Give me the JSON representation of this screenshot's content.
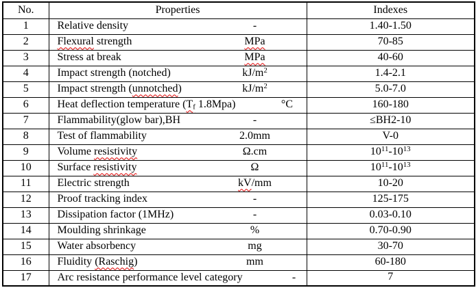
{
  "colors": {
    "border": "#000000",
    "text": "#000000",
    "squiggle": "#e00000",
    "background": "#ffffff"
  },
  "table": {
    "headers": {
      "no": "No.",
      "properties": "Properties",
      "indexes": "Indexes"
    },
    "rows": [
      {
        "no": "1",
        "property": [
          {
            "t": "Relative density"
          }
        ],
        "unit": [
          {
            "t": "-"
          }
        ],
        "index": [
          {
            "t": "1.40-1.50"
          }
        ]
      },
      {
        "no": "2",
        "property": [
          {
            "t": "Flexural",
            "sq": true
          },
          {
            "t": " strength"
          }
        ],
        "unit": [
          {
            "t": "MPa",
            "sq": true
          }
        ],
        "index": [
          {
            "t": "70-85"
          }
        ]
      },
      {
        "no": "3",
        "property": [
          {
            "t": "Stress at break"
          }
        ],
        "unit": [
          {
            "t": "MPa",
            "sq": true
          }
        ],
        "index": [
          {
            "t": "40-60"
          }
        ]
      },
      {
        "no": "4",
        "property": [
          {
            "t": "Impact strength (notched)"
          }
        ],
        "unit": [
          {
            "t": "kJ/m"
          },
          {
            "t": "2",
            "sup": true
          }
        ],
        "index": [
          {
            "t": "1.4-2.1"
          }
        ]
      },
      {
        "no": "5",
        "property": [
          {
            "t": "Impact strength ("
          },
          {
            "t": "unnotched",
            "sq": true
          },
          {
            "t": ")"
          }
        ],
        "unit": [
          {
            "t": "kJ/m"
          },
          {
            "t": "2",
            "sup": true
          }
        ],
        "index": [
          {
            "t": "5.0-7.0"
          }
        ]
      },
      {
        "no": "6",
        "property": [
          {
            "t": "Heat deflection temperature ("
          },
          {
            "t": "T",
            "sq": true
          },
          {
            "t": "f",
            "sub": true,
            "sq": true
          },
          {
            "t": " 1.8Mpa)"
          }
        ],
        "unit": [
          {
            "t": "°C"
          }
        ],
        "index": [
          {
            "t": "160-180"
          }
        ]
      },
      {
        "no": "7",
        "property": [
          {
            "t": "Flammability(glow bar),BH"
          }
        ],
        "unit": [
          {
            "t": "-"
          }
        ],
        "index": [
          {
            "t": "≤BH2-10"
          }
        ]
      },
      {
        "no": "8",
        "property": [
          {
            "t": "Test of flammability"
          }
        ],
        "unit": [
          {
            "t": "2.0mm"
          }
        ],
        "index": [
          {
            "t": "V-0"
          }
        ]
      },
      {
        "no": "9",
        "property": [
          {
            "t": "Volume "
          },
          {
            "t": "resistivity",
            "sq": true
          }
        ],
        "unit": [
          {
            "t": "Ω.cm"
          }
        ],
        "index": [
          {
            "t": "10"
          },
          {
            "t": "11",
            "sup": true
          },
          {
            "t": "-10"
          },
          {
            "t": "13",
            "sup": true
          }
        ]
      },
      {
        "no": "10",
        "property": [
          {
            "t": "Surface "
          },
          {
            "t": "resistivity",
            "sq": true
          }
        ],
        "unit": [
          {
            "t": "Ω"
          }
        ],
        "index": [
          {
            "t": "10"
          },
          {
            "t": "11",
            "sup": true
          },
          {
            "t": "-10"
          },
          {
            "t": "13",
            "sup": true
          }
        ]
      },
      {
        "no": "11",
        "property": [
          {
            "t": "Electric strength"
          }
        ],
        "unit": [
          {
            "t": "kV",
            "sq": true
          },
          {
            "t": "/mm"
          }
        ],
        "index": [
          {
            "t": "10-20"
          }
        ]
      },
      {
        "no": "12",
        "property": [
          {
            "t": "Proof tracking index"
          }
        ],
        "unit": [
          {
            "t": "-"
          }
        ],
        "index": [
          {
            "t": "125-175"
          }
        ]
      },
      {
        "no": "13",
        "property": [
          {
            "t": "Dissipation factor (1MHz)"
          }
        ],
        "unit": [
          {
            "t": "-"
          }
        ],
        "index": [
          {
            "t": "0.03-0.10"
          }
        ]
      },
      {
        "no": "14",
        "property": [
          {
            "t": "Moulding shrinkage"
          }
        ],
        "unit": [
          {
            "t": "%"
          }
        ],
        "index": [
          {
            "t": "0.70-0.90"
          }
        ]
      },
      {
        "no": "15",
        "property": [
          {
            "t": "Water absorbency"
          }
        ],
        "unit": [
          {
            "t": "mg"
          }
        ],
        "index": [
          {
            "t": "30-70"
          }
        ]
      },
      {
        "no": "16",
        "property": [
          {
            "t": "Fluidity "
          },
          {
            "t": "(Raschig",
            "sq": true
          },
          {
            "t": ")"
          }
        ],
        "unit": [
          {
            "t": "mm"
          }
        ],
        "index": [
          {
            "t": "60-180"
          }
        ]
      },
      {
        "no": "17",
        "property": [
          {
            "t": "Arc resistance performance level category"
          }
        ],
        "unit": [
          {
            "t": "-"
          }
        ],
        "index": [
          {
            "t": "7"
          }
        ],
        "index_valign": "top"
      }
    ]
  }
}
